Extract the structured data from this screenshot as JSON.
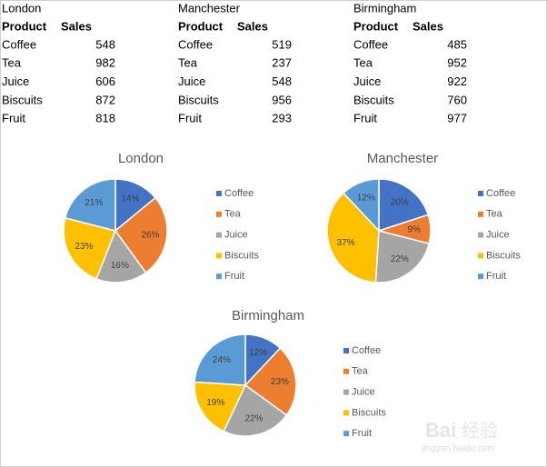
{
  "tables": [
    {
      "title": "London",
      "header": [
        "Product",
        "Sales"
      ],
      "rows": [
        [
          "Coffee",
          548
        ],
        [
          "Tea",
          982
        ],
        [
          "Juice",
          606
        ],
        [
          "Biscuits",
          872
        ],
        [
          "Fruit",
          818
        ]
      ]
    },
    {
      "title": "Manchester",
      "header": [
        "Product",
        "Sales"
      ],
      "rows": [
        [
          "Coffee",
          519
        ],
        [
          "Tea",
          237
        ],
        [
          "Juice",
          548
        ],
        [
          "Biscuits",
          956
        ],
        [
          "Fruit",
          293
        ]
      ]
    },
    {
      "title": "Birmingham",
      "header": [
        "Product",
        "Sales"
      ],
      "rows": [
        [
          "Coffee",
          485
        ],
        [
          "Tea",
          952
        ],
        [
          "Juice",
          922
        ],
        [
          "Biscuits",
          760
        ],
        [
          "Fruit",
          977
        ]
      ]
    }
  ],
  "chart_data": [
    {
      "type": "pie",
      "title": "London",
      "categories": [
        "Coffee",
        "Tea",
        "Juice",
        "Biscuits",
        "Fruit"
      ],
      "values": [
        14,
        26,
        16,
        23,
        21
      ],
      "value_labels": [
        "14%",
        "26%",
        "16%",
        "23%",
        "21%"
      ],
      "colors": [
        "#4472c4",
        "#ed7d31",
        "#a5a5a5",
        "#ffc000",
        "#5b9bd5"
      ],
      "legend": "right"
    },
    {
      "type": "pie",
      "title": "Manchester",
      "categories": [
        "Coffee",
        "Tea",
        "Juice",
        "Biscuits",
        "Fruit"
      ],
      "values": [
        20,
        9,
        22,
        37,
        12
      ],
      "value_labels": [
        "20%",
        "9%",
        "22%",
        "37%",
        "12%"
      ],
      "colors": [
        "#4472c4",
        "#ed7d31",
        "#a5a5a5",
        "#ffc000",
        "#5b9bd5"
      ],
      "legend": "right"
    },
    {
      "type": "pie",
      "title": "Birmingham",
      "categories": [
        "Coffee",
        "Tea",
        "Juice",
        "Biscuits",
        "Fruit"
      ],
      "values": [
        12,
        23,
        22,
        19,
        24
      ],
      "value_labels": [
        "12%",
        "23%",
        "22%",
        "19%",
        "24%"
      ],
      "colors": [
        "#4472c4",
        "#ed7d31",
        "#a5a5a5",
        "#ffc000",
        "#5b9bd5"
      ],
      "legend": "right"
    }
  ],
  "watermark": [
    "Bai",
    "经验",
    "jingyan.baidu.com"
  ]
}
